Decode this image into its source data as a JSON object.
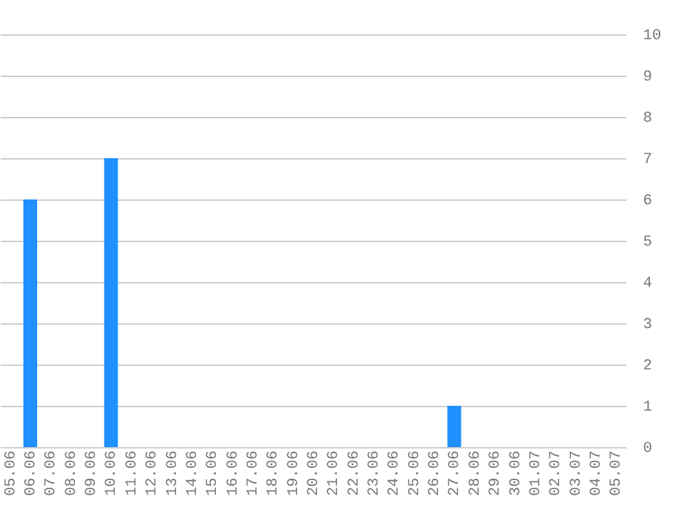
{
  "chart_data": {
    "type": "bar",
    "categories": [
      "05.06",
      "06.06",
      "07.06",
      "08.06",
      "09.06",
      "10.06",
      "11.06",
      "12.06",
      "13.06",
      "14.06",
      "15.06",
      "16.06",
      "17.06",
      "18.06",
      "19.06",
      "20.06",
      "21.06",
      "22.06",
      "23.06",
      "24.06",
      "25.06",
      "26.06",
      "27.06",
      "28.06",
      "29.06",
      "30.06",
      "01.07",
      "02.07",
      "03.07",
      "04.07",
      "05.07"
    ],
    "values": [
      0,
      6,
      0,
      0,
      0,
      7,
      0,
      0,
      0,
      0,
      0,
      0,
      0,
      0,
      0,
      0,
      0,
      0,
      0,
      0,
      0,
      0,
      1,
      0,
      0,
      0,
      0,
      0,
      0,
      0,
      0
    ],
    "color": "#1e90ff",
    "ylim": [
      0,
      10
    ],
    "yticks": [
      0,
      1,
      2,
      3,
      4,
      5,
      6,
      7,
      8,
      9,
      10
    ],
    "grid": "y"
  }
}
